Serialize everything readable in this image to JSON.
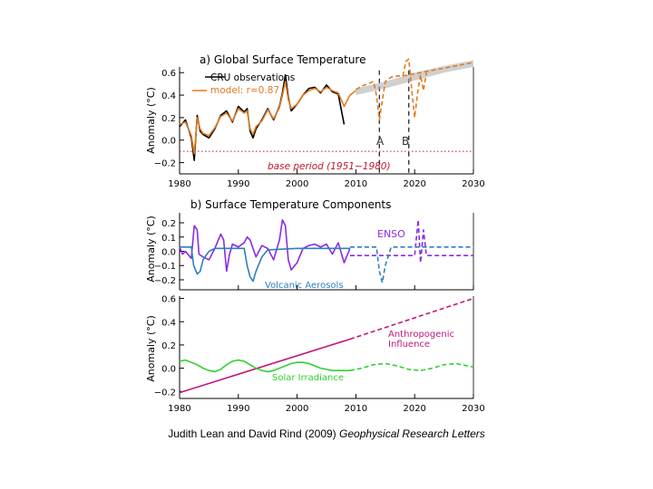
{
  "colors": {
    "axis": "#000000",
    "cru": "#000000",
    "model": "#e07b20",
    "forecast_band": "#aaaaaa",
    "enso": "#8a2be2",
    "volcanic": "#2e7fc0",
    "anthropogenic": "#c0187a",
    "solar": "#2fd02f",
    "base_period": "#c0182a",
    "vline": "#333344"
  },
  "chart_data": [
    {
      "type": "line",
      "panel": "a",
      "title": "a) Global Surface Temperature",
      "ylabel": "Anomaly (°C)",
      "xlim": [
        1980,
        2030
      ],
      "ylim": [
        -0.3,
        0.65
      ],
      "xticks": [
        "1980",
        "1990",
        "2000",
        "2010",
        "2020",
        "2030"
      ],
      "xtick_values": [
        1980,
        1990,
        2000,
        2010,
        2020,
        2030
      ],
      "yticks": [
        "−0.2",
        "0.0",
        "0.2",
        "0.4",
        "0.6"
      ],
      "ytick_values": [
        -0.2,
        0.0,
        0.2,
        0.4,
        0.6
      ],
      "legend": [
        {
          "label": "CRU observations",
          "color": "#000000"
        },
        {
          "label": "model: r=0.87",
          "color": "#e07b20"
        }
      ],
      "annotations": [
        {
          "text": "A",
          "x": 2014,
          "y": 0.05
        },
        {
          "text": "B",
          "x": 2019,
          "y": 0.05
        }
      ],
      "base_period": {
        "label": "base period (1951−1980)",
        "y": -0.1
      },
      "vlines": [
        2014,
        2019
      ],
      "series": [
        {
          "name": "CRU observations",
          "style": "solid",
          "color": "#000000",
          "x": [
            1980,
            1981,
            1982,
            1982.5,
            1983,
            1983.5,
            1984,
            1985,
            1986,
            1987,
            1988,
            1989,
            1990,
            1991,
            1991.5,
            1992,
            1992.5,
            1993,
            1994,
            1995,
            1996,
            1997,
            1997.5,
            1998,
            1998.5,
            1999,
            2000,
            2001,
            2002,
            2003,
            2004,
            2005,
            2006,
            2007,
            2008
          ],
          "values": [
            0.12,
            0.18,
            0.02,
            -0.18,
            0.22,
            0.08,
            0.05,
            0.02,
            0.1,
            0.22,
            0.26,
            0.16,
            0.3,
            0.25,
            0.28,
            0.08,
            0.02,
            0.1,
            0.18,
            0.28,
            0.18,
            0.3,
            0.42,
            0.58,
            0.38,
            0.26,
            0.32,
            0.4,
            0.46,
            0.47,
            0.42,
            0.49,
            0.43,
            0.41,
            0.14
          ]
        },
        {
          "name": "model",
          "style": "solid",
          "color": "#e07b20",
          "x": [
            1980,
            1981,
            1982,
            1982.5,
            1983,
            1983.5,
            1984,
            1985,
            1986,
            1987,
            1988,
            1989,
            1990,
            1991,
            1991.5,
            1992,
            1992.5,
            1993,
            1994,
            1995,
            1996,
            1997,
            1997.5,
            1998,
            1998.5,
            1999,
            2000,
            2001,
            2002,
            2003,
            2004,
            2005,
            2006,
            2007,
            2008,
            2009,
            2010
          ],
          "values": [
            0.14,
            0.16,
            0.04,
            -0.12,
            0.2,
            0.1,
            0.06,
            0.04,
            0.11,
            0.21,
            0.24,
            0.17,
            0.28,
            0.24,
            0.26,
            0.1,
            0.05,
            0.12,
            0.17,
            0.27,
            0.19,
            0.29,
            0.4,
            0.52,
            0.36,
            0.28,
            0.32,
            0.4,
            0.44,
            0.46,
            0.43,
            0.47,
            0.44,
            0.42,
            0.3,
            0.4,
            0.44
          ]
        },
        {
          "name": "model forecast A",
          "style": "dashed",
          "color": "#e07b20",
          "x": [
            2010,
            2011,
            2012,
            2013,
            2013.5,
            2014,
            2014.5,
            2015,
            2016,
            2017,
            2018,
            2019,
            2020,
            2021,
            2022,
            2023,
            2024,
            2025,
            2026,
            2027,
            2028,
            2029,
            2030
          ],
          "values": [
            0.45,
            0.48,
            0.5,
            0.52,
            0.4,
            0.18,
            0.35,
            0.52,
            0.56,
            0.57,
            0.57,
            0.58,
            0.59,
            0.6,
            0.61,
            0.62,
            0.63,
            0.64,
            0.65,
            0.66,
            0.67,
            0.68,
            0.69
          ]
        },
        {
          "name": "model forecast B",
          "style": "dashed",
          "color": "#e07b20",
          "x": [
            2018,
            2018.5,
            2019,
            2019.5,
            2020,
            2020.5,
            2021,
            2021.5,
            2022
          ],
          "values": [
            0.57,
            0.7,
            0.72,
            0.45,
            0.2,
            0.42,
            0.58,
            0.44,
            0.6
          ]
        }
      ],
      "band": {
        "x": [
          2010,
          2015,
          2020,
          2025,
          2030
        ],
        "low": [
          0.4,
          0.46,
          0.53,
          0.6,
          0.65
        ],
        "high": [
          0.46,
          0.52,
          0.6,
          0.66,
          0.71
        ]
      }
    },
    {
      "type": "line",
      "panel": "b-upper",
      "title": "b) Surface Temperature Components",
      "ylabel": "Anomaly (°C)",
      "xlim": [
        1980,
        2030
      ],
      "ylim": [
        -0.27,
        0.27
      ],
      "yticks": [
        "−0.2",
        "−0.1",
        "0.0",
        "0.1",
        "0.2"
      ],
      "ytick_values": [
        -0.2,
        -0.1,
        0.0,
        0.1,
        0.2
      ],
      "labels": [
        {
          "text": "ENSO",
          "x": 2020.5,
          "y": 0.11,
          "color": "#8a2be2"
        },
        {
          "text": "Volcanic Aerosols",
          "x": 1988,
          "y": -0.24,
          "color": "#2e7fc0"
        }
      ],
      "series": [
        {
          "name": "ENSO",
          "style": "solid",
          "color": "#8a2be2",
          "x": [
            1980,
            1980.5,
            1981,
            1982,
            1982.5,
            1983,
            1983.3,
            1984,
            1985,
            1986,
            1987,
            1987.5,
            1988,
            1988.5,
            1989,
            1990,
            1991,
            1991.5,
            1992,
            1993,
            1994,
            1995,
            1996,
            1997,
            1997.5,
            1998,
            1998.5,
            1999,
            2000,
            2001,
            2002,
            2003,
            2004,
            2005,
            2006,
            2007,
            2008,
            2009
          ],
          "values": [
            0.03,
            -0.02,
            0.0,
            -0.05,
            0.18,
            0.15,
            -0.02,
            -0.04,
            -0.06,
            0.02,
            0.12,
            0.08,
            -0.14,
            -0.02,
            0.05,
            0.03,
            0.06,
            0.1,
            0.08,
            -0.04,
            0.04,
            0.02,
            -0.06,
            0.08,
            0.22,
            0.18,
            -0.06,
            -0.13,
            -0.08,
            0.02,
            0.04,
            0.05,
            0.03,
            0.05,
            -0.02,
            0.06,
            -0.08,
            0.02
          ]
        },
        {
          "name": "ENSO projection",
          "style": "dashed",
          "color": "#8a2be2",
          "x": [
            2009,
            2020,
            2020.6,
            2021,
            2021.5,
            2022,
            2030
          ],
          "values": [
            -0.03,
            -0.03,
            0.22,
            -0.08,
            0.15,
            -0.03,
            -0.03
          ]
        },
        {
          "name": "Volcanic Aerosols",
          "style": "solid",
          "color": "#2e7fc0",
          "x": [
            1980,
            1982,
            1982.4,
            1983,
            1983.5,
            1984,
            1985,
            1986,
            1988,
            1990,
            1991,
            1991.5,
            1992,
            1992.5,
            1993,
            1994,
            1995,
            2000,
            2005,
            2009
          ],
          "values": [
            0.03,
            0.03,
            -0.1,
            -0.16,
            -0.14,
            -0.06,
            0.0,
            0.02,
            0.02,
            0.02,
            0.02,
            -0.1,
            -0.18,
            -0.21,
            -0.14,
            -0.04,
            0.01,
            0.02,
            0.02,
            0.02
          ]
        },
        {
          "name": "Volcanic projection",
          "style": "dashed",
          "color": "#2e7fc0",
          "x": [
            2009,
            2013.5,
            2014,
            2014.5,
            2015,
            2016,
            2030
          ],
          "values": [
            0.03,
            0.03,
            -0.14,
            -0.22,
            -0.1,
            0.03,
            0.03
          ]
        }
      ]
    },
    {
      "type": "line",
      "panel": "b-lower",
      "ylabel": "Anomaly (°C)",
      "xlim": [
        1980,
        2030
      ],
      "ylim": [
        -0.26,
        0.62
      ],
      "xticks": [
        "1980",
        "1990",
        "2000",
        "2010",
        "2020",
        "2030"
      ],
      "xtick_values": [
        1980,
        1990,
        2000,
        2010,
        2020,
        2030
      ],
      "yticks": [
        "−0.2",
        "0.0",
        "0.2",
        "0.4",
        "0.6"
      ],
      "ytick_values": [
        -0.2,
        0.0,
        0.2,
        0.4,
        0.6
      ],
      "labels": [
        {
          "text": "Anthropogenic",
          "x": 2021,
          "y": 0.22,
          "color": "#c0187a"
        },
        {
          "text": "Influence",
          "x": 2021,
          "y": 0.15,
          "color": "#c0187a"
        },
        {
          "text": "Solar Irradiance",
          "x": 1997,
          "y": -0.12,
          "color": "#2fd02f"
        }
      ],
      "series": [
        {
          "name": "Anthropogenic Influence",
          "style": "solid",
          "color": "#c0187a",
          "x": [
            1980,
            2009
          ],
          "values": [
            -0.21,
            0.25
          ]
        },
        {
          "name": "Anthropogenic projection",
          "style": "dashed",
          "color": "#c0187a",
          "x": [
            2009,
            2030
          ],
          "values": [
            0.25,
            0.6
          ]
        },
        {
          "name": "Solar Irradiance",
          "style": "solid",
          "color": "#2fd02f",
          "x": [
            1980,
            1981,
            1982,
            1983,
            1984,
            1985,
            1986,
            1987,
            1988,
            1989,
            1990,
            1991,
            1992,
            1993,
            1994,
            1995,
            1996,
            1997,
            1998,
            1999,
            2000,
            2001,
            2002,
            2003,
            2004,
            2005,
            2006,
            2007,
            2008,
            2009
          ],
          "values": [
            0.06,
            0.07,
            0.05,
            0.03,
            0.0,
            -0.02,
            -0.03,
            -0.01,
            0.03,
            0.06,
            0.07,
            0.06,
            0.03,
            0.0,
            -0.02,
            -0.03,
            -0.02,
            0.0,
            0.02,
            0.04,
            0.05,
            0.05,
            0.04,
            0.02,
            0.0,
            -0.01,
            -0.02,
            -0.02,
            -0.02,
            -0.02
          ]
        },
        {
          "name": "Solar projection",
          "style": "dashed",
          "color": "#2fd02f",
          "x": [
            2009,
            2011,
            2013,
            2015,
            2017,
            2019,
            2021,
            2023,
            2025,
            2027,
            2030
          ],
          "values": [
            -0.02,
            0.0,
            0.03,
            0.04,
            0.02,
            -0.01,
            -0.02,
            0.0,
            0.03,
            0.04,
            0.01
          ]
        }
      ]
    }
  ],
  "caption": {
    "authors": "Judith Lean and David Rind (2009)",
    "journal": "Geophysical Research Letters"
  }
}
